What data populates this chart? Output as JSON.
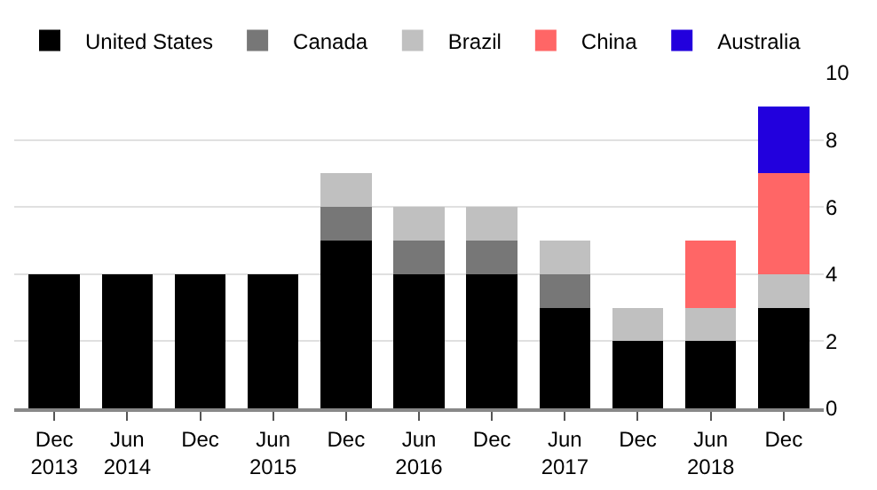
{
  "chart_data": {
    "type": "bar",
    "stacked": true,
    "categories": [
      "Dec\n2013",
      "Jun\n2014",
      "Dec",
      "Jun\n2015",
      "Dec",
      "Jun\n2016",
      "Dec",
      "Jun\n2017",
      "Dec",
      "Jun\n2018",
      "Dec"
    ],
    "series": [
      {
        "name": "United States",
        "color": "#000000",
        "values": [
          4,
          4,
          4,
          4,
          5,
          4,
          4,
          3,
          2,
          2,
          3
        ]
      },
      {
        "name": "Canada",
        "color": "#777777",
        "values": [
          0,
          0,
          0,
          0,
          1,
          1,
          1,
          1,
          0,
          0,
          0
        ]
      },
      {
        "name": "Brazil",
        "color": "#c0c0c0",
        "values": [
          0,
          0,
          0,
          0,
          1,
          1,
          1,
          1,
          1,
          1,
          1
        ]
      },
      {
        "name": "China",
        "color": "#ff6666",
        "values": [
          0,
          0,
          0,
          0,
          0,
          0,
          0,
          0,
          0,
          2,
          3
        ]
      },
      {
        "name": "Australia",
        "color": "#2200dd",
        "values": [
          0,
          0,
          0,
          0,
          0,
          0,
          0,
          0,
          0,
          0,
          2
        ]
      }
    ],
    "ylim": [
      0,
      10
    ],
    "yticks": [
      0,
      2,
      4,
      6,
      8,
      10
    ],
    "grid": "y",
    "legend": "top left"
  }
}
